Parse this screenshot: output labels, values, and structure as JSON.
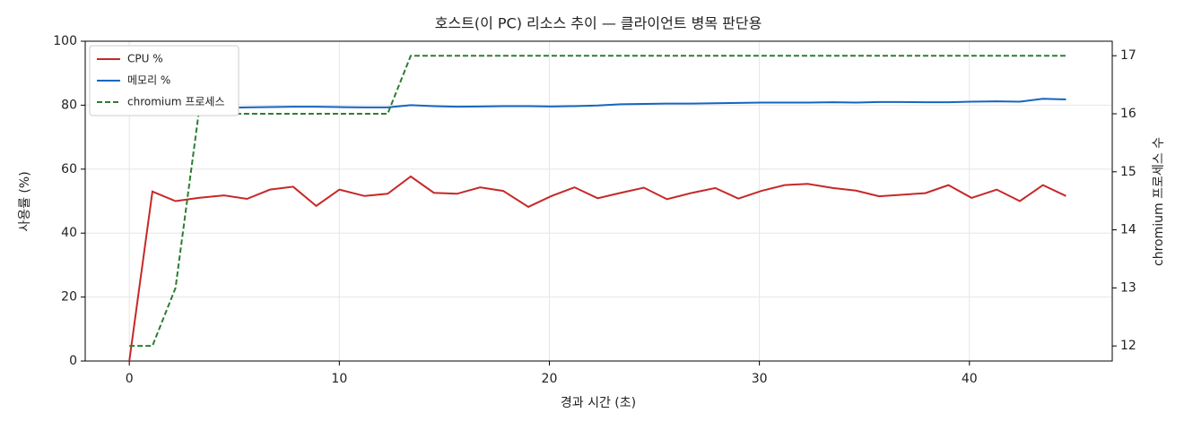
{
  "chart_data": {
    "type": "line",
    "title": "호스트(이 PC) 리소스 추이 — 클라이언트 병목 판단용",
    "xlabel": "경과 시간 (초)",
    "ylabel": "사용률 (%)",
    "y2label": "chromium 프로세스 수",
    "x": [
      0,
      1.1,
      2.2,
      3.3,
      4.5,
      5.6,
      6.7,
      7.8,
      8.9,
      10.0,
      11.2,
      12.3,
      13.4,
      14.5,
      15.6,
      16.7,
      17.8,
      19.0,
      20.1,
      21.2,
      22.3,
      23.4,
      24.5,
      25.6,
      26.8,
      27.9,
      29.0,
      30.1,
      31.2,
      32.3,
      33.5,
      34.6,
      35.7,
      36.8,
      37.9,
      39.0,
      40.1,
      41.3,
      42.4,
      43.5,
      44.6
    ],
    "series": [
      {
        "name": "CPU %",
        "color": "#c62828",
        "values": [
          0,
          53,
          50,
          51,
          51.8,
          50.7,
          53.6,
          54.5,
          48.5,
          53.6,
          51.6,
          52.3,
          57.7,
          52.6,
          52.3,
          54.3,
          53.2,
          48.2,
          51.6,
          54.3,
          50.9,
          52.6,
          54.2,
          50.6,
          52.6,
          54.1,
          50.8,
          53.2,
          55,
          55.4,
          54.1,
          53.3,
          51.5,
          52,
          52.5,
          55,
          51,
          53.6,
          50,
          55,
          51.6
        ]
      },
      {
        "name": "메모리 %",
        "color": "#1565c0",
        "values": [
          79,
          79,
          79,
          79,
          79.2,
          79.3,
          79.4,
          79.5,
          79.5,
          79.4,
          79.3,
          79.3,
          80,
          79.7,
          79.5,
          79.6,
          79.7,
          79.7,
          79.6,
          79.7,
          79.9,
          80.3,
          80.4,
          80.5,
          80.5,
          80.6,
          80.7,
          80.8,
          80.8,
          80.8,
          80.9,
          80.8,
          81,
          81,
          80.9,
          80.9,
          81.1,
          81.2,
          81.1,
          82,
          81.8
        ]
      },
      {
        "name": "chromium 프로세스",
        "color": "#2e7d32",
        "dashed": true,
        "axis": "y2",
        "values": [
          12,
          12,
          13,
          16,
          16,
          16,
          16,
          16,
          16,
          16,
          16,
          16,
          17,
          17,
          17,
          17,
          17,
          17,
          17,
          17,
          17,
          17,
          17,
          17,
          17,
          17,
          17,
          17,
          17,
          17,
          17,
          17,
          17,
          17,
          17,
          17,
          17,
          17,
          17,
          17,
          17
        ]
      }
    ],
    "xlim": [
      -2.1,
      46.8
    ],
    "xticks": [
      0,
      10,
      20,
      30,
      40
    ],
    "ylim": [
      0,
      100
    ],
    "yticks": [
      0,
      20,
      40,
      60,
      80,
      100
    ],
    "y2lim": [
      11.74,
      17.25
    ],
    "y2ticks": [
      12,
      13,
      14,
      15,
      16,
      17
    ],
    "grid": true,
    "legend": "upper-left"
  }
}
